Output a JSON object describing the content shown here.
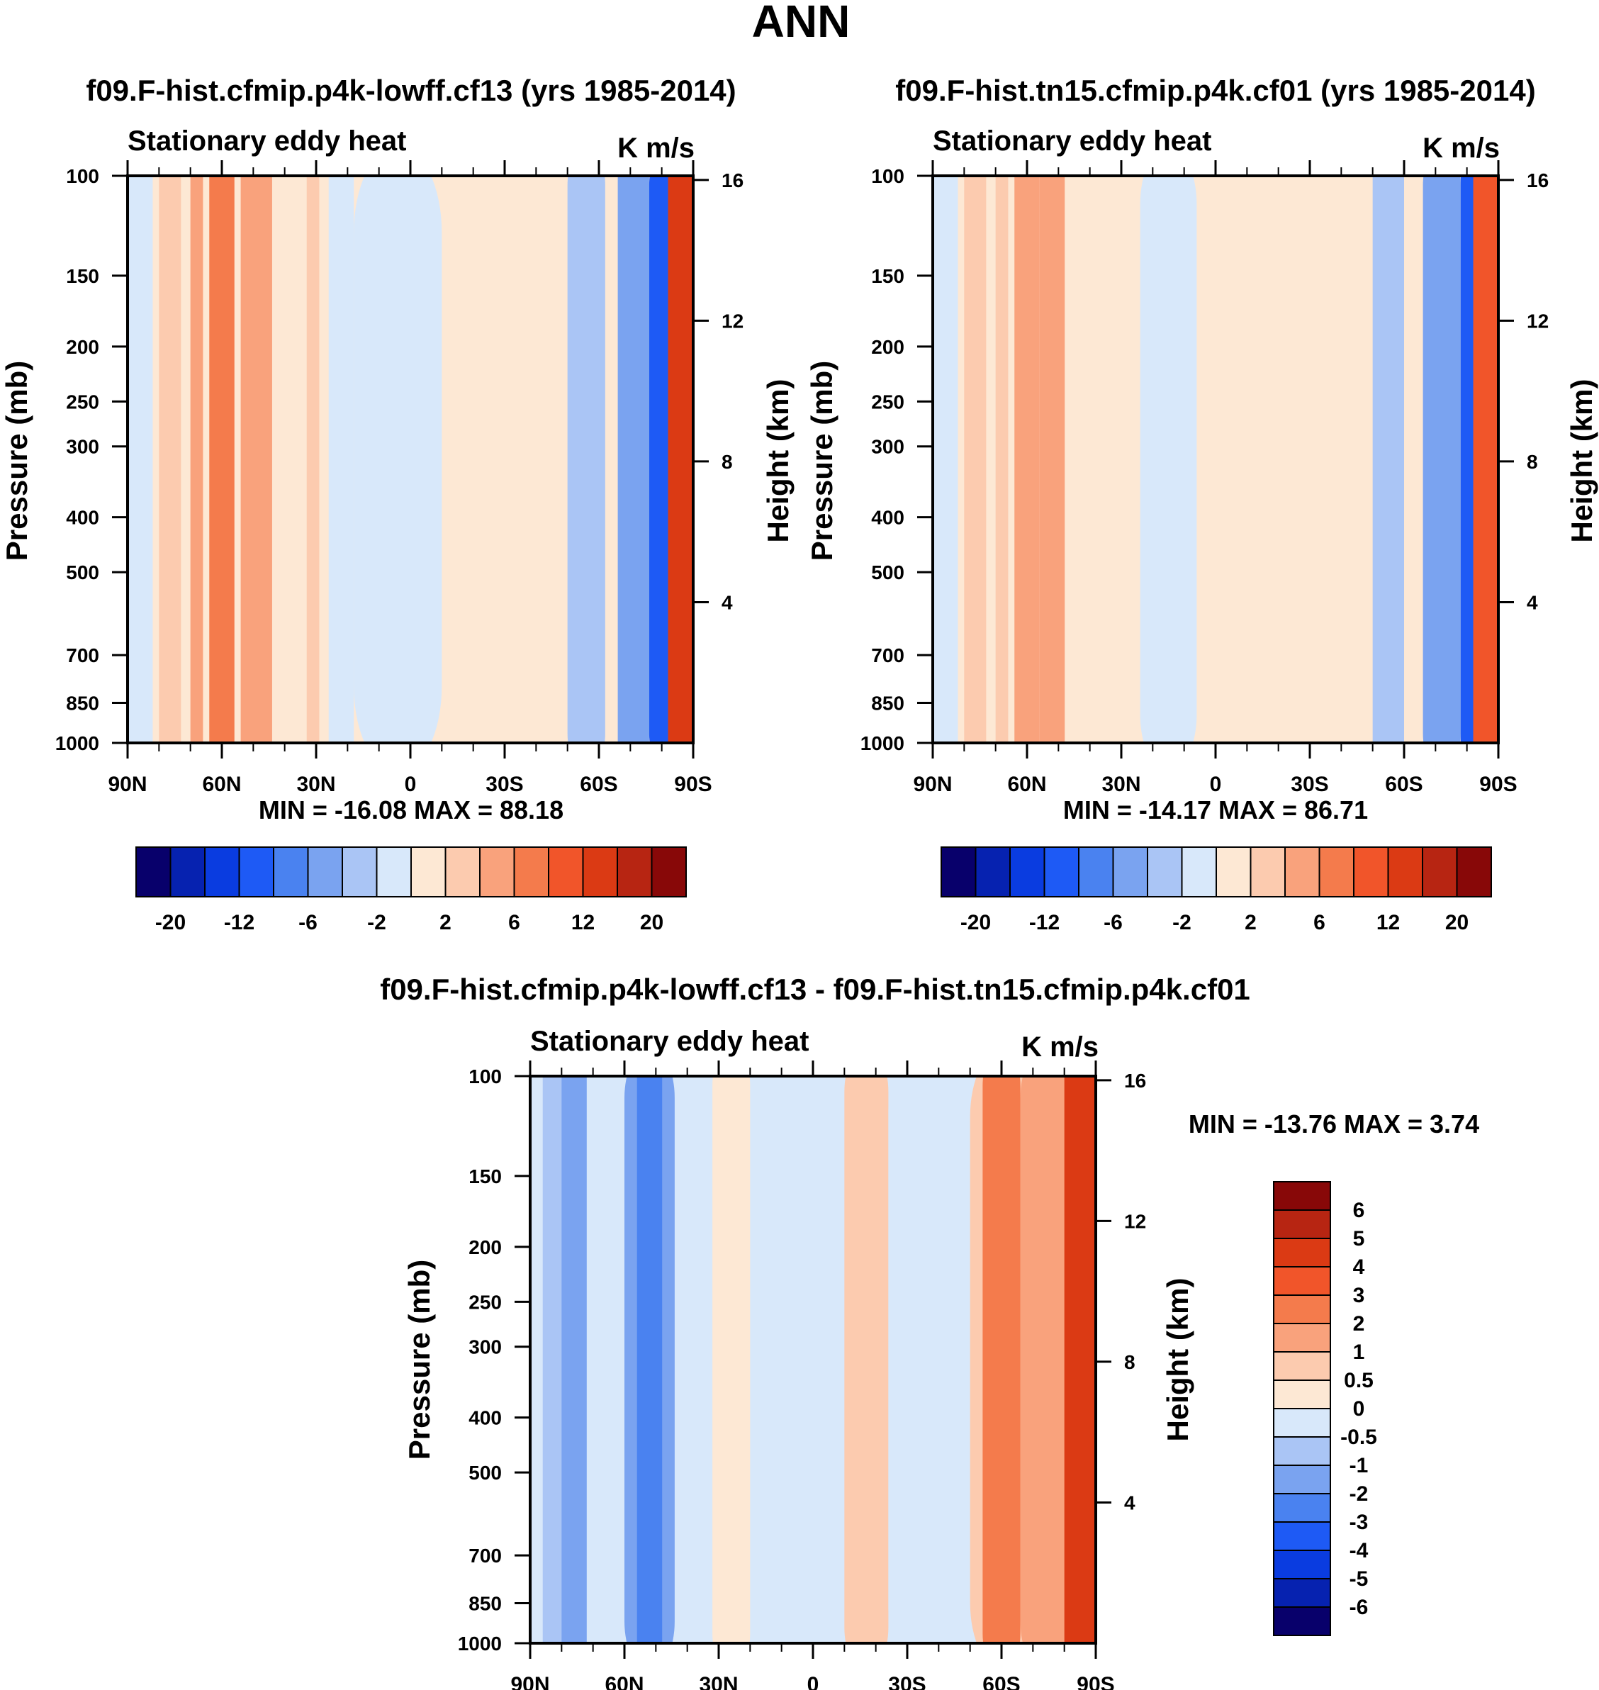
{
  "figure": {
    "title": "ANN"
  },
  "colors": {
    "cbar_main": [
      "#08006b",
      "#0622b0",
      "#0a3ce0",
      "#1e5af5",
      "#4a82f0",
      "#7aa3f0",
      "#aac5f5",
      "#d8e8fa",
      "#fde8d4",
      "#fccbaf",
      "#f9a27c",
      "#f47b4c",
      "#f1552a",
      "#db3a14",
      "#b72512",
      "#880808"
    ],
    "cbar_diff": [
      "#880808",
      "#b72512",
      "#db3a14",
      "#f1552a",
      "#f47b4c",
      "#f9a27c",
      "#fccbaf",
      "#fde8d4",
      "#d8e8fa",
      "#aac5f5",
      "#7aa3f0",
      "#4a82f0",
      "#1e5af5",
      "#0a3ce0",
      "#0622b0",
      "#08006b"
    ]
  },
  "chart_data": [
    {
      "type": "heatmap",
      "title": "f09.F-hist.cfmip.p4k-lowff.cf13 (yrs 1985-2014)",
      "left_label": "Stationary eddy heat",
      "right_label": "K m/s",
      "ylabel": "Pressure (mb)",
      "y2label": "Height (km)",
      "x_ticks": [
        "90N",
        "60N",
        "30N",
        "0",
        "30S",
        "60S",
        "90S"
      ],
      "y_ticks": [
        "100",
        "150",
        "200",
        "250",
        "300",
        "400",
        "500",
        "700",
        "850",
        "1000"
      ],
      "y2_ticks": [
        "16",
        "12",
        "8",
        "4"
      ],
      "min_max": "MIN = -16.08  MAX =  88.18",
      "colorbar_labels": [
        "-20",
        "-12",
        "-6",
        "-2",
        "2",
        "6",
        "12",
        "20"
      ],
      "ylim": [
        1000,
        100
      ],
      "y_scale": "log",
      "bands": [
        {
          "x_from": 90,
          "x_to": 82,
          "level": 7
        },
        {
          "x_from": 80,
          "x_to": 73,
          "level": 9
        },
        {
          "x_from": 70,
          "x_to": 66,
          "level": 10
        },
        {
          "x_from": 64,
          "x_to": 56,
          "level": 11
        },
        {
          "x_from": 54,
          "x_to": 44,
          "level": 10
        },
        {
          "x_from": 42,
          "x_to": 35,
          "level": 8
        },
        {
          "x_from": 33,
          "x_to": 29,
          "level": 9
        },
        {
          "x_from": 26,
          "x_to": 18,
          "level": 7
        },
        {
          "x_from": 18,
          "x_to": -10,
          "level": 7
        },
        {
          "x_from": -12,
          "x_to": -20,
          "level": 8
        },
        {
          "x_from": -30,
          "x_to": -38,
          "level": 8
        },
        {
          "x_from": -50,
          "x_to": -62,
          "level": 6
        },
        {
          "x_from": -66,
          "x_to": -76,
          "level": 5
        },
        {
          "x_from": -76,
          "x_to": -88,
          "level": 3
        },
        {
          "x_from": -82,
          "x_to": -90,
          "level": 13
        }
      ]
    },
    {
      "type": "heatmap",
      "title": "f09.F-hist.tn15.cfmip.p4k.cf01 (yrs 1985-2014)",
      "left_label": "Stationary eddy heat",
      "right_label": "K m/s",
      "ylabel": "Pressure (mb)",
      "y2label": "Height (km)",
      "x_ticks": [
        "90N",
        "60N",
        "30N",
        "0",
        "30S",
        "60S",
        "90S"
      ],
      "y_ticks": [
        "100",
        "150",
        "200",
        "250",
        "300",
        "400",
        "500",
        "700",
        "850",
        "1000"
      ],
      "y2_ticks": [
        "16",
        "12",
        "8",
        "4"
      ],
      "min_max": "MIN = -14.17  MAX =  86.71",
      "colorbar_labels": [
        "-20",
        "-12",
        "-6",
        "-2",
        "2",
        "6",
        "12",
        "20"
      ],
      "ylim": [
        1000,
        100
      ],
      "y_scale": "log",
      "bands": [
        {
          "x_from": 90,
          "x_to": 82,
          "level": 7
        },
        {
          "x_from": 80,
          "x_to": 73,
          "level": 9
        },
        {
          "x_from": 70,
          "x_to": 66,
          "level": 9
        },
        {
          "x_from": 64,
          "x_to": 56,
          "level": 10
        },
        {
          "x_from": 56,
          "x_to": 48,
          "level": 10
        },
        {
          "x_from": 42,
          "x_to": 35,
          "level": 8
        },
        {
          "x_from": 32,
          "x_to": 26,
          "level": 8
        },
        {
          "x_from": 24,
          "x_to": 6,
          "level": 7
        },
        {
          "x_from": -4,
          "x_to": -14,
          "level": 8
        },
        {
          "x_from": -30,
          "x_to": -38,
          "level": 8
        },
        {
          "x_from": -50,
          "x_to": -60,
          "level": 6
        },
        {
          "x_from": -66,
          "x_to": -78,
          "level": 5
        },
        {
          "x_from": -78,
          "x_to": -88,
          "level": 3
        },
        {
          "x_from": -82,
          "x_to": -90,
          "level": 12
        }
      ]
    },
    {
      "type": "heatmap",
      "title": "f09.F-hist.cfmip.p4k-lowff.cf13 - f09.F-hist.tn15.cfmip.p4k.cf01",
      "left_label": "Stationary eddy heat",
      "right_label": "K m/s",
      "ylabel": "Pressure (mb)",
      "y2label": "Height (km)",
      "x_ticks": [
        "90N",
        "60N",
        "30N",
        "0",
        "30S",
        "60S",
        "90S"
      ],
      "y_ticks": [
        "100",
        "150",
        "200",
        "250",
        "300",
        "400",
        "500",
        "700",
        "850",
        "1000"
      ],
      "y2_ticks": [
        "16",
        "12",
        "8",
        "4"
      ],
      "min_max": "MIN = -13.76  MAX =   3.74",
      "colorbar_labels": [
        "6",
        "5",
        "4",
        "3",
        "2",
        "1",
        "0.5",
        "0",
        "-0.5",
        "-1",
        "-2",
        "-3",
        "-4",
        "-5",
        "-6"
      ],
      "ylim": [
        1000,
        100
      ],
      "y_scale": "log",
      "bands": [
        {
          "x_from": 86,
          "x_to": 76,
          "level": 9
        },
        {
          "x_from": 80,
          "x_to": 72,
          "level": 10
        },
        {
          "x_from": 70,
          "x_to": 62,
          "level": 8
        },
        {
          "x_from": 60,
          "x_to": 44,
          "level": 10
        },
        {
          "x_from": 56,
          "x_to": 48,
          "level": 11
        },
        {
          "x_from": 44,
          "x_to": 34,
          "level": 8
        },
        {
          "x_from": 32,
          "x_to": 20,
          "level": 7
        },
        {
          "x_from": 10,
          "x_to": -10,
          "level": 8
        },
        {
          "x_from": -10,
          "x_to": -24,
          "level": 6
        },
        {
          "x_from": -24,
          "x_to": -44,
          "level": 8
        },
        {
          "x_from": -50,
          "x_to": -72,
          "level": 6
        },
        {
          "x_from": -54,
          "x_to": -66,
          "level": 4
        },
        {
          "x_from": -66,
          "x_to": -82,
          "level": 5
        },
        {
          "x_from": -80,
          "x_to": -90,
          "level": 2
        }
      ]
    }
  ]
}
